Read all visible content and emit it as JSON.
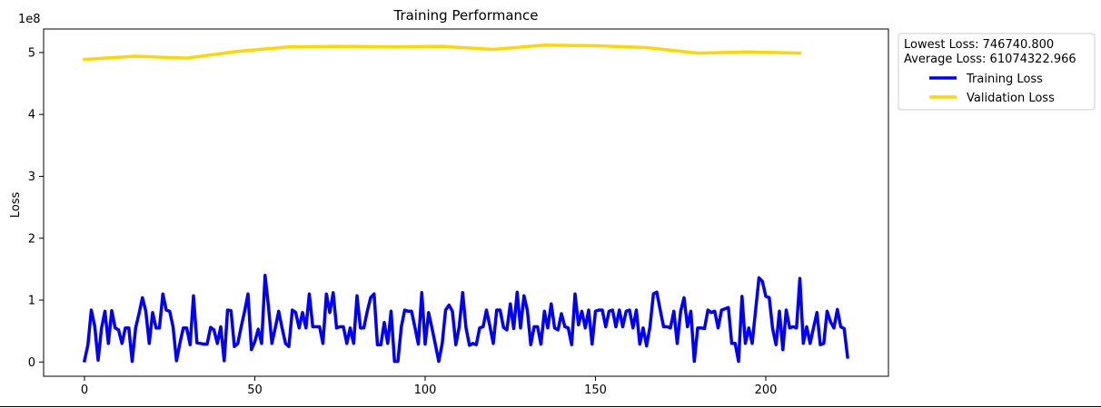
{
  "chart_data": {
    "type": "line",
    "title": "Training Performance",
    "xlabel": "",
    "ylabel": "Loss",
    "y_offset_label": "1e8",
    "xlim": [
      -12,
      236
    ],
    "ylim": [
      -23000000,
      538000000
    ],
    "x_ticks": [
      0,
      50,
      100,
      150,
      200
    ],
    "y_ticks": [
      0,
      100000000,
      200000000,
      300000000,
      400000000,
      500000000
    ],
    "y_tick_labels": [
      "0",
      "1",
      "2",
      "3",
      "4",
      "5"
    ],
    "grid": false,
    "legend": {
      "placement": "outside-right-top",
      "header_lines": [
        "Lowest Loss: 746740.800",
        "Average Loss: 61074322.966"
      ]
    },
    "series": [
      {
        "name": "Training Loss",
        "color": "#0000ff",
        "x": [
          0,
          1,
          2,
          3,
          4,
          5,
          6,
          7,
          8,
          9,
          10,
          11,
          12,
          13,
          14,
          15,
          16,
          17,
          18,
          19,
          20,
          21,
          22,
          23,
          24,
          25,
          26,
          27,
          28,
          29,
          30,
          31,
          32,
          33,
          34,
          35,
          36,
          37,
          38,
          39,
          40,
          41,
          42,
          43,
          44,
          45,
          46,
          47,
          48,
          49,
          50,
          51,
          52,
          53,
          54,
          55,
          56,
          57,
          58,
          59,
          60,
          61,
          62,
          63,
          64,
          65,
          66,
          67,
          68,
          69,
          70,
          71,
          72,
          73,
          74,
          75,
          76,
          77,
          78,
          79,
          80,
          81,
          82,
          83,
          84,
          85,
          86,
          87,
          88,
          89,
          90,
          91,
          92,
          93,
          94,
          95,
          96,
          97,
          98,
          99,
          100,
          101,
          102,
          103,
          104,
          105,
          106,
          107,
          108,
          109,
          110,
          111,
          112,
          113,
          114,
          115,
          116,
          117,
          118,
          119,
          120,
          121,
          122,
          123,
          124,
          125,
          126,
          127,
          128,
          129,
          130,
          131,
          132,
          133,
          134,
          135,
          136,
          137,
          138,
          139,
          140,
          141,
          142,
          143,
          144,
          145,
          146,
          147,
          148,
          149,
          150,
          151,
          152,
          153,
          154,
          155,
          156,
          157,
          158,
          159,
          160,
          161,
          162,
          163,
          164,
          165,
          166,
          167,
          168,
          169,
          170,
          171,
          172,
          173,
          174,
          175,
          176,
          177,
          178,
          179,
          180,
          181,
          182,
          183,
          184,
          185,
          186,
          187,
          188,
          189,
          190,
          191,
          192,
          193,
          194,
          195,
          196,
          197,
          198,
          199,
          200,
          201,
          202,
          203,
          204,
          205,
          206,
          207,
          208,
          209,
          210,
          211,
          212,
          213,
          214,
          215,
          216,
          217,
          218,
          219,
          220,
          221,
          222,
          223,
          224
        ],
        "y": [
          2000000,
          28000000,
          84000000,
          58000000,
          3000000,
          55000000,
          82000000,
          30000000,
          83000000,
          55000000,
          52000000,
          30000000,
          55000000,
          55000000,
          1000000,
          55000000,
          78000000,
          104000000,
          82000000,
          30000000,
          80000000,
          55000000,
          55000000,
          110000000,
          84000000,
          82000000,
          57000000,
          2000000,
          30000000,
          55000000,
          55000000,
          28000000,
          107000000,
          31000000,
          30000000,
          29000000,
          29000000,
          56000000,
          52000000,
          30000000,
          57000000,
          2000000,
          84000000,
          83000000,
          25000000,
          30000000,
          57000000,
          82000000,
          110000000,
          20000000,
          33000000,
          53000000,
          30000000,
          140000000,
          90000000,
          30000000,
          55000000,
          82000000,
          55000000,
          30000000,
          25000000,
          84000000,
          80000000,
          55000000,
          80000000,
          55000000,
          110000000,
          57000000,
          57000000,
          57000000,
          30000000,
          110000000,
          80000000,
          112000000,
          55000000,
          57000000,
          57000000,
          30000000,
          55000000,
          30000000,
          107000000,
          55000000,
          55000000,
          82000000,
          104000000,
          110000000,
          28000000,
          28000000,
          64000000,
          30000000,
          82000000,
          1000000,
          1000000,
          57000000,
          84000000,
          82000000,
          82000000,
          56000000,
          29000000,
          112000000,
          29000000,
          80000000,
          55000000,
          28000000,
          1000000,
          30000000,
          84000000,
          92000000,
          82000000,
          28000000,
          57000000,
          112000000,
          55000000,
          27000000,
          30000000,
          28000000,
          55000000,
          57000000,
          84000000,
          58000000,
          30000000,
          84000000,
          84000000,
          56000000,
          52000000,
          94000000,
          54000000,
          113000000,
          55000000,
          107000000,
          84000000,
          28000000,
          57000000,
          57000000,
          29000000,
          82000000,
          55000000,
          94000000,
          55000000,
          52000000,
          78000000,
          57000000,
          55000000,
          28000000,
          110000000,
          60000000,
          82000000,
          55000000,
          84000000,
          29000000,
          82000000,
          84000000,
          84000000,
          57000000,
          82000000,
          84000000,
          57000000,
          84000000,
          57000000,
          82000000,
          84000000,
          55000000,
          84000000,
          29000000,
          55000000,
          26000000,
          57000000,
          110000000,
          113000000,
          84000000,
          57000000,
          57000000,
          55000000,
          82000000,
          30000000,
          82000000,
          104000000,
          57000000,
          82000000,
          1000000,
          55000000,
          55000000,
          54000000,
          84000000,
          80000000,
          82000000,
          55000000,
          84000000,
          86000000,
          88000000,
          30000000,
          30000000,
          1000000,
          106000000,
          30000000,
          55000000,
          30000000,
          84000000,
          136000000,
          130000000,
          106000000,
          104000000,
          54000000,
          28000000,
          82000000,
          20000000,
          84000000,
          55000000,
          57000000,
          55000000,
          135000000,
          30000000,
          57000000,
          30000000,
          55000000,
          80000000,
          28000000,
          30000000,
          82000000,
          65000000,
          55000000,
          85000000,
          57000000,
          54000000,
          8000000
        ]
      },
      {
        "name": "Validation Loss",
        "color": "#ffd700",
        "x": [
          0,
          15,
          30,
          45,
          60,
          75,
          90,
          105,
          120,
          135,
          150,
          165,
          180,
          195,
          210
        ],
        "y": [
          489000000,
          494000000,
          491000000,
          502000000,
          509000000,
          510000000,
          509000000,
          510000000,
          505000000,
          512000000,
          511000000,
          508000000,
          499000000,
          501000000,
          499000000
        ]
      }
    ]
  }
}
